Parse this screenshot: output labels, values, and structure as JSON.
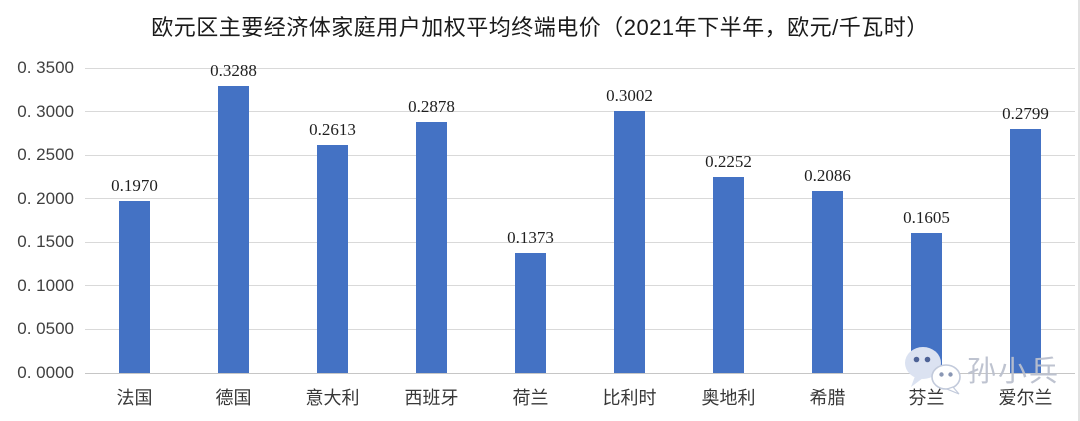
{
  "title": "欧元区主要经济体家庭用户加权平均终端电价（2021年下半年，欧元/千瓦时）",
  "chart_data": {
    "type": "bar",
    "title": "欧元区主要经济体家庭用户加权平均终端电价（2021年下半年，欧元/千瓦时）",
    "categories": [
      "法国",
      "德国",
      "意大利",
      "西班牙",
      "荷兰",
      "比利时",
      "奥地利",
      "希腊",
      "芬兰",
      "爱尔兰"
    ],
    "values": [
      0.197,
      0.3288,
      0.2613,
      0.2878,
      0.1373,
      0.3002,
      0.2252,
      0.2086,
      0.1605,
      0.2799
    ],
    "value_labels": [
      "0.1970",
      "0.3288",
      "0.2613",
      "0.2878",
      "0.1373",
      "0.3002",
      "0.2252",
      "0.2086",
      "0.1605",
      "0.2799"
    ],
    "xlabel": "",
    "ylabel": "",
    "ylim": [
      0,
      0.35
    ],
    "ytick_step": 0.05,
    "ytick_labels": [
      "0. 0000",
      "0. 0500",
      "0. 1000",
      "0. 1500",
      "0. 2000",
      "0. 2500",
      "0. 3000",
      "0. 3500"
    ],
    "grid": true,
    "legend": false,
    "bar_color": "#4472C4",
    "gridline_color": "#D9D9D9"
  },
  "watermark": {
    "icon": "wechat-icon",
    "text": "孙小兵",
    "color": "#BAC0CD"
  }
}
